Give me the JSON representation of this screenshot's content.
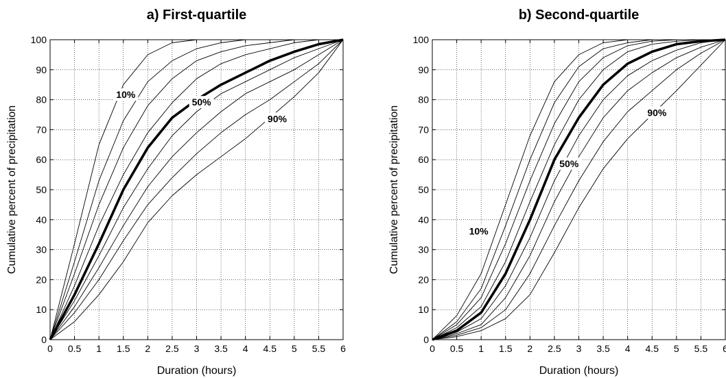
{
  "chart_data": [
    {
      "type": "line",
      "title": "a) First-quartile",
      "xlabel": "Duration (hours)",
      "ylabel": "Cumulative percent of precipitation",
      "xlim": [
        0,
        6
      ],
      "ylim": [
        0,
        100
      ],
      "xticks": [
        "0",
        "0.5",
        "1",
        "1.5",
        "2",
        "2.5",
        "3",
        "3.5",
        "4",
        "4.5",
        "5",
        "5.5",
        "6"
      ],
      "yticks": [
        "0",
        "10",
        "20",
        "30",
        "40",
        "50",
        "60",
        "70",
        "80",
        "90",
        "100"
      ],
      "grid": true,
      "x": [
        0,
        0.5,
        1,
        1.5,
        2,
        2.5,
        3,
        3.5,
        4,
        4.5,
        5,
        5.5,
        6
      ],
      "series": [
        {
          "values": [
            0,
            32,
            65,
            85,
            95,
            99,
            100,
            100,
            100,
            100,
            100,
            100,
            100
          ]
        },
        {
          "values": [
            0,
            26,
            53,
            73,
            86,
            93,
            97,
            99,
            100,
            100,
            100,
            100,
            100
          ]
        },
        {
          "values": [
            0,
            22,
            45,
            64,
            78,
            87,
            93,
            96,
            98,
            99,
            100,
            100,
            100
          ]
        },
        {
          "values": [
            0,
            18,
            38,
            55,
            69,
            79,
            87,
            92,
            95,
            97,
            99,
            100,
            100
          ]
        },
        {
          "values": [
            0,
            15,
            32,
            50,
            64,
            74,
            80,
            85,
            89,
            93,
            96,
            98.5,
            100
          ]
        },
        {
          "values": [
            0,
            13,
            28,
            44,
            57,
            68,
            76,
            82,
            86,
            90,
            94,
            97,
            100
          ]
        },
        {
          "values": [
            0,
            11,
            24,
            38,
            51,
            61,
            69,
            76,
            82,
            86,
            90,
            95,
            100
          ]
        },
        {
          "values": [
            0,
            9,
            20,
            33,
            45,
            54,
            62,
            69,
            75,
            80,
            86,
            92,
            100
          ]
        },
        {
          "values": [
            0,
            6,
            15,
            26,
            39,
            48,
            55,
            61,
            67,
            74,
            81,
            89,
            100
          ]
        }
      ],
      "highlight_index": 4,
      "annotations": [
        {
          "text": "10%",
          "x": 1.55,
          "y": 81
        },
        {
          "text": "50%",
          "x": 3.1,
          "y": 78.5
        },
        {
          "text": "90%",
          "x": 4.65,
          "y": 73
        }
      ]
    },
    {
      "type": "line",
      "title": "b) Second-quartile",
      "xlabel": "Duration (hours)",
      "ylabel": "Cumulative percent of precipitation",
      "xlim": [
        0,
        6
      ],
      "ylim": [
        0,
        100
      ],
      "xticks": [
        "0",
        "0.5",
        "1",
        "1.5",
        "2",
        "2.5",
        "3",
        "3.5",
        "4",
        "4.5",
        "5",
        "5.5",
        "6"
      ],
      "yticks": [
        "0",
        "10",
        "20",
        "30",
        "40",
        "50",
        "60",
        "70",
        "80",
        "90",
        "100"
      ],
      "grid": true,
      "x": [
        0,
        0.5,
        1,
        1.5,
        2,
        2.5,
        3,
        3.5,
        4,
        4.5,
        5,
        5.5,
        6
      ],
      "series": [
        {
          "values": [
            0,
            8,
            22,
            45,
            68,
            86,
            95,
            99,
            100,
            100,
            100,
            100,
            100
          ]
        },
        {
          "values": [
            0,
            6,
            17,
            38,
            60,
            79,
            91,
            97,
            99,
            100,
            100,
            100,
            100
          ]
        },
        {
          "values": [
            0,
            5,
            14,
            32,
            53,
            72,
            86,
            94,
            98,
            99.5,
            100,
            100,
            100
          ]
        },
        {
          "values": [
            0,
            4,
            11,
            26,
            46,
            65,
            80,
            90,
            96,
            98.5,
            99.5,
            100,
            100
          ]
        },
        {
          "values": [
            0,
            3,
            9,
            22,
            40,
            60,
            74,
            85,
            92,
            96,
            98.5,
            99.5,
            100
          ]
        },
        {
          "values": [
            0,
            2.5,
            7,
            18,
            34,
            53,
            68,
            80,
            88,
            93,
            96.5,
            99,
            100
          ]
        },
        {
          "values": [
            0,
            2,
            5,
            14,
            28,
            46,
            61,
            74,
            83,
            89,
            94,
            97.5,
            100
          ]
        },
        {
          "values": [
            0,
            1.5,
            4,
            10,
            22,
            38,
            53,
            66,
            76,
            83,
            90,
            95.5,
            100
          ]
        },
        {
          "values": [
            0,
            1,
            3,
            7,
            15,
            29,
            44,
            57,
            67,
            75,
            83,
            91.5,
            100
          ]
        }
      ],
      "highlight_index": 4,
      "annotations": [
        {
          "text": "10%",
          "x": 0.95,
          "y": 35.5
        },
        {
          "text": "50%",
          "x": 2.8,
          "y": 58
        },
        {
          "text": "90%",
          "x": 4.6,
          "y": 75
        }
      ]
    }
  ]
}
